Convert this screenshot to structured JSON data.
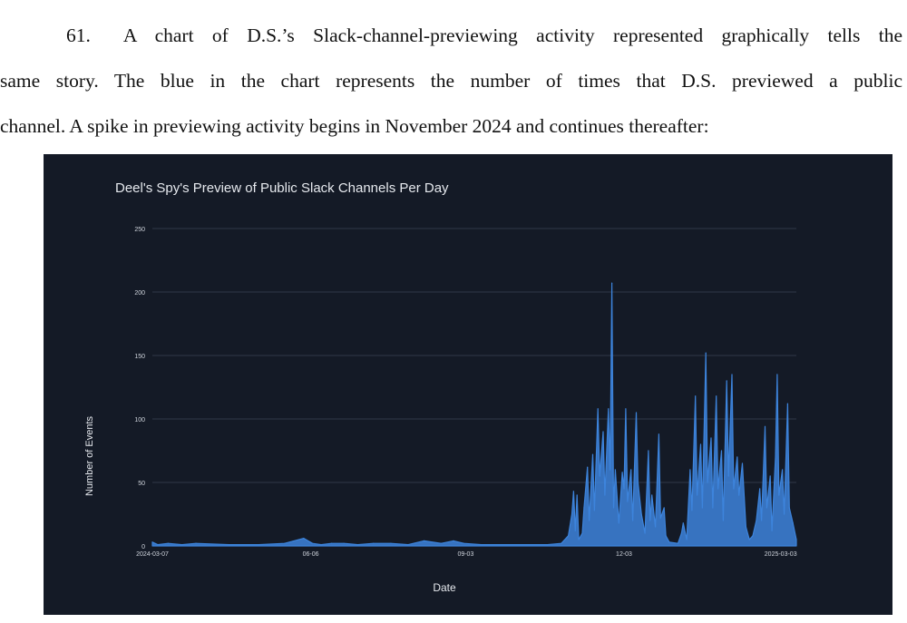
{
  "paragraph": {
    "number": "61.",
    "lines": [
      "A chart of D.S.’s Slack-channel-previewing activity represented graphically tells the",
      "same story.  The blue in the chart represents the number of times that D.S. previewed a public",
      "channel.  A spike in previewing activity begins in November 2024 and continues thereafter:"
    ]
  },
  "colors": {
    "chart_background": "#141a26",
    "series": "#3d84dc",
    "grid": "#2f3848",
    "text": "#cfd4dc"
  },
  "chart_data": {
    "type": "area",
    "title": "Deel's Spy's Preview of Public Slack Channels Per Day",
    "xlabel": "Date",
    "ylabel": "Number of Events",
    "ylim": [
      0,
      250
    ],
    "yticks": [
      0,
      50,
      100,
      150,
      200,
      250
    ],
    "xticks": [
      "2024-03-07",
      "06-06",
      "09-03",
      "12-03",
      "2025-03-03"
    ],
    "grid": true,
    "series": [
      {
        "points": [
          [
            "2024-03-07",
            3
          ],
          [
            "2024-03-10",
            1
          ],
          [
            "2024-03-16",
            2
          ],
          [
            "2024-03-24",
            1
          ],
          [
            "2024-04-01",
            2
          ],
          [
            "2024-04-20",
            1
          ],
          [
            "2024-05-07",
            1
          ],
          [
            "2024-05-22",
            2
          ],
          [
            "2024-06-02",
            6
          ],
          [
            "2024-06-07",
            2
          ],
          [
            "2024-06-12",
            1
          ],
          [
            "2024-06-18",
            2
          ],
          [
            "2024-06-25",
            2
          ],
          [
            "2024-07-03",
            1
          ],
          [
            "2024-07-12",
            2
          ],
          [
            "2024-07-22",
            2
          ],
          [
            "2024-08-01",
            1
          ],
          [
            "2024-08-10",
            4
          ],
          [
            "2024-08-20",
            2
          ],
          [
            "2024-08-27",
            4
          ],
          [
            "2024-09-02",
            2
          ],
          [
            "2024-09-12",
            1
          ],
          [
            "2024-10-20",
            1
          ],
          [
            "2024-10-28",
            2
          ],
          [
            "2024-11-01",
            8
          ],
          [
            "2024-11-03",
            25
          ],
          [
            "2024-11-04",
            43
          ],
          [
            "2024-11-05",
            12
          ],
          [
            "2024-11-06",
            40
          ],
          [
            "2024-11-07",
            5
          ],
          [
            "2024-11-09",
            10
          ],
          [
            "2024-11-10",
            30
          ],
          [
            "2024-11-12",
            62
          ],
          [
            "2024-11-13",
            20
          ],
          [
            "2024-11-15",
            72
          ],
          [
            "2024-11-16",
            28
          ],
          [
            "2024-11-18",
            108
          ],
          [
            "2024-11-19",
            55
          ],
          [
            "2024-11-21",
            90
          ],
          [
            "2024-11-22",
            40
          ],
          [
            "2024-11-24",
            108
          ],
          [
            "2024-11-25",
            60
          ],
          [
            "2024-11-26",
            207
          ],
          [
            "2024-11-27",
            30
          ],
          [
            "2024-11-28",
            60
          ],
          [
            "2024-11-30",
            18
          ],
          [
            "2024-12-02",
            58
          ],
          [
            "2024-12-03",
            45
          ],
          [
            "2024-12-04",
            108
          ],
          [
            "2024-12-05",
            35
          ],
          [
            "2024-12-07",
            60
          ],
          [
            "2024-12-08",
            20
          ],
          [
            "2024-12-10",
            105
          ],
          [
            "2024-12-11",
            50
          ],
          [
            "2024-12-13",
            25
          ],
          [
            "2024-12-15",
            10
          ],
          [
            "2024-12-17",
            75
          ],
          [
            "2024-12-18",
            20
          ],
          [
            "2024-12-19",
            40
          ],
          [
            "2024-12-21",
            15
          ],
          [
            "2024-12-23",
            88
          ],
          [
            "2024-12-24",
            22
          ],
          [
            "2024-12-26",
            30
          ],
          [
            "2024-12-27",
            8
          ],
          [
            "2024-12-29",
            3
          ],
          [
            "2025-01-03",
            2
          ],
          [
            "2025-01-05",
            10
          ],
          [
            "2025-01-06",
            18
          ],
          [
            "2025-01-08",
            5
          ],
          [
            "2025-01-10",
            60
          ],
          [
            "2025-01-11",
            28
          ],
          [
            "2025-01-13",
            118
          ],
          [
            "2025-01-14",
            40
          ],
          [
            "2025-01-16",
            80
          ],
          [
            "2025-01-17",
            30
          ],
          [
            "2025-01-19",
            152
          ],
          [
            "2025-01-20",
            50
          ],
          [
            "2025-01-22",
            85
          ],
          [
            "2025-01-23",
            30
          ],
          [
            "2025-01-25",
            118
          ],
          [
            "2025-01-26",
            45
          ],
          [
            "2025-01-28",
            75
          ],
          [
            "2025-01-29",
            20
          ],
          [
            "2025-01-31",
            130
          ],
          [
            "2025-02-01",
            55
          ],
          [
            "2025-02-03",
            135
          ],
          [
            "2025-02-04",
            45
          ],
          [
            "2025-02-06",
            70
          ],
          [
            "2025-02-07",
            40
          ],
          [
            "2025-02-09",
            65
          ],
          [
            "2025-02-11",
            15
          ],
          [
            "2025-02-13",
            5
          ],
          [
            "2025-02-15",
            8
          ],
          [
            "2025-02-17",
            20
          ],
          [
            "2025-02-19",
            45
          ],
          [
            "2025-02-20",
            20
          ],
          [
            "2025-02-22",
            94
          ],
          [
            "2025-02-23",
            30
          ],
          [
            "2025-02-25",
            55
          ],
          [
            "2025-02-26",
            12
          ],
          [
            "2025-02-28",
            70
          ],
          [
            "2025-03-01",
            135
          ],
          [
            "2025-03-02",
            40
          ],
          [
            "2025-03-04",
            60
          ],
          [
            "2025-03-05",
            25
          ],
          [
            "2025-03-07",
            112
          ],
          [
            "2025-03-08",
            30
          ],
          [
            "2025-03-10",
            18
          ],
          [
            "2025-03-12",
            5
          ]
        ]
      }
    ]
  }
}
